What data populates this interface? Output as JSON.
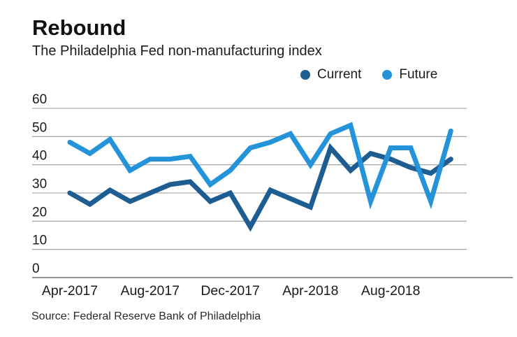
{
  "title": "Rebound",
  "subtitle": "The Philadelphia Fed non-manufacturing index",
  "source": "Source: Federal Reserve Bank of Philadelphia",
  "legend": [
    {
      "label": "Current",
      "color": "#1e5d92"
    },
    {
      "label": "Future",
      "color": "#2493d9"
    }
  ],
  "chart_data": {
    "type": "line",
    "x": [
      "Apr-2017",
      "May-2017",
      "Jun-2017",
      "Jul-2017",
      "Aug-2017",
      "Sep-2017",
      "Oct-2017",
      "Nov-2017",
      "Dec-2017",
      "Jan-2018",
      "Feb-2018",
      "Mar-2018",
      "Apr-2018",
      "May-2018",
      "Jun-2018",
      "Jul-2018",
      "Aug-2018",
      "Sep-2018",
      "Oct-2018",
      "Nov-2018"
    ],
    "series": [
      {
        "name": "Current",
        "color": "#1e5d92",
        "values": [
          30,
          26,
          31,
          27,
          30,
          33,
          34,
          27,
          30,
          18,
          31,
          28,
          25,
          46,
          38,
          44,
          42,
          39,
          37,
          42
        ]
      },
      {
        "name": "Future",
        "color": "#2493d9",
        "values": [
          48,
          44,
          49,
          38,
          42,
          42,
          43,
          33,
          38,
          46,
          48,
          51,
          40,
          51,
          54,
          27,
          46,
          46,
          27,
          52
        ]
      }
    ],
    "title": "Rebound",
    "subtitle": "The Philadelphia Fed non-manufacturing index",
    "xlabel": "",
    "ylabel": "",
    "ylim": [
      0,
      60
    ],
    "y_ticks": [
      0,
      10,
      20,
      30,
      40,
      50,
      60
    ],
    "x_tick_labels": [
      "Apr-2017",
      "Aug-2017",
      "Dec-2017",
      "Apr-2018",
      "Aug-2018"
    ],
    "x_tick_indices": [
      0,
      4,
      8,
      12,
      16
    ],
    "grid": "horizontal",
    "legend_position": "top-right",
    "source": "Source: Federal Reserve Bank of Philadelphia"
  }
}
